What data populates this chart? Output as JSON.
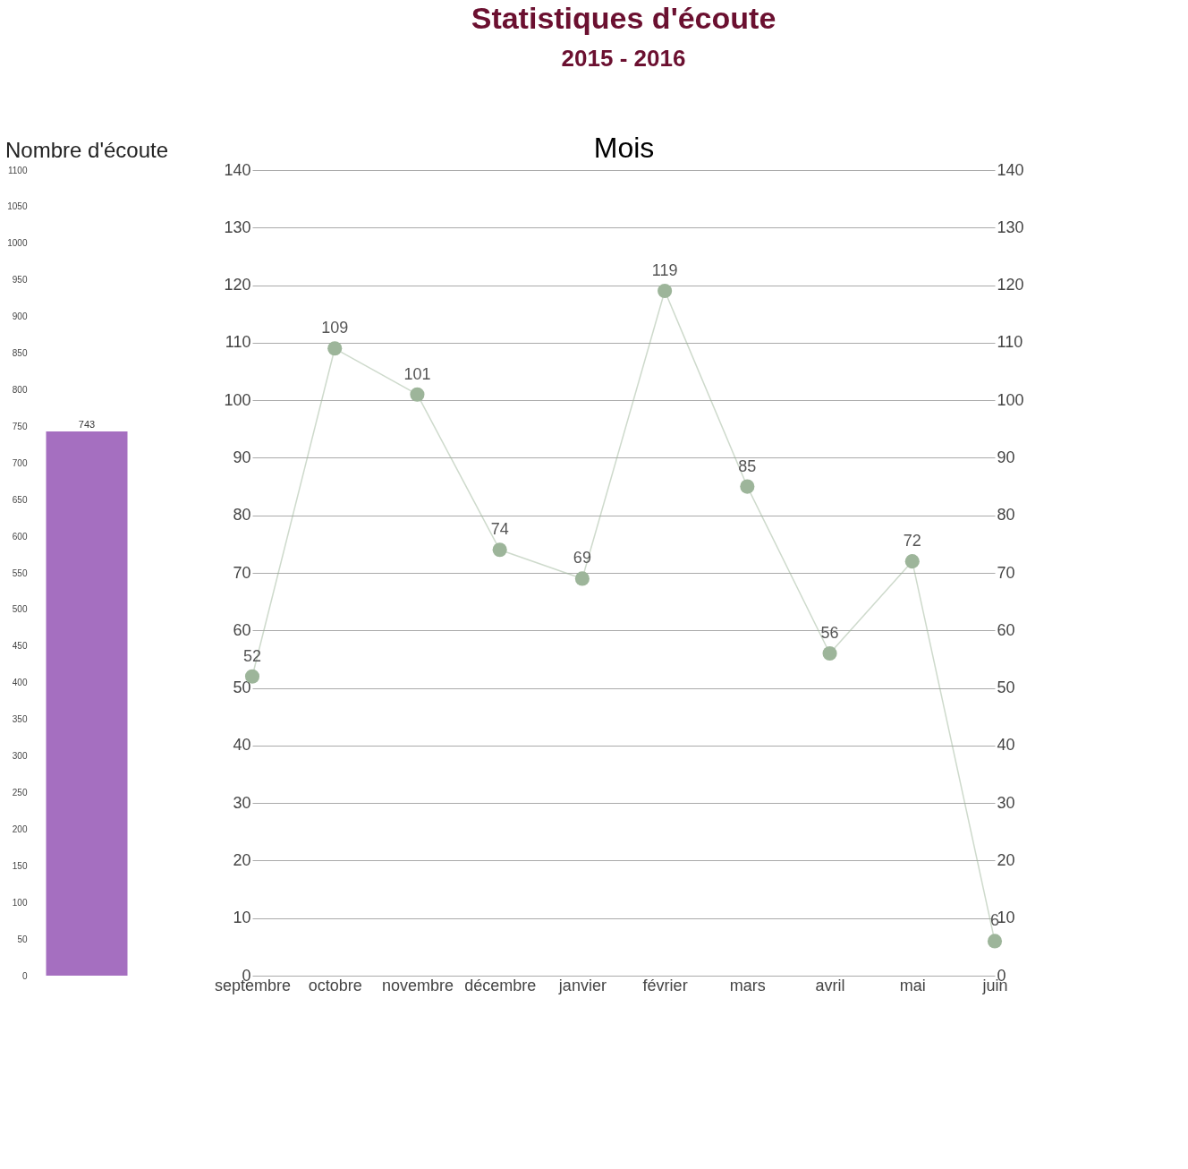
{
  "chart_data": [
    {
      "type": "bar",
      "title": "Nombre d'écoute",
      "categories": [
        null
      ],
      "values": [
        743
      ],
      "color": "#a56fc0",
      "data_labels": true,
      "ylim": [
        0,
        1100
      ],
      "yticks": [
        0,
        50,
        100,
        150,
        200,
        250,
        300,
        350,
        400,
        450,
        500,
        550,
        600,
        650,
        700,
        750,
        800,
        850,
        900,
        950,
        1000,
        1050,
        1100
      ],
      "grid": false
    },
    {
      "type": "line",
      "title": "Statistiques d'écoute",
      "subtitle": "2015 - 2016",
      "xlabel": "Mois",
      "categories": [
        "septembre",
        "octobre",
        "novembre",
        "décembre",
        "janvier",
        "février",
        "mars",
        "avril",
        "mai",
        "juin"
      ],
      "series": [
        {
          "color": "#9db59a",
          "values": [
            52,
            109,
            101,
            74,
            69,
            119,
            85,
            56,
            72,
            6
          ]
        }
      ],
      "marker": "circle",
      "line_style": "solid",
      "data_labels": true,
      "grid": "y",
      "ylim": [
        0,
        140
      ],
      "yticks": [
        0,
        10,
        20,
        30,
        40,
        50,
        60,
        70,
        80,
        90,
        100,
        110,
        120,
        130,
        140
      ],
      "y2lim": [
        0,
        140
      ],
      "y2ticks": [
        0,
        10,
        20,
        30,
        40,
        50,
        60,
        70,
        80,
        90,
        100,
        110,
        120,
        130,
        140
      ]
    }
  ]
}
